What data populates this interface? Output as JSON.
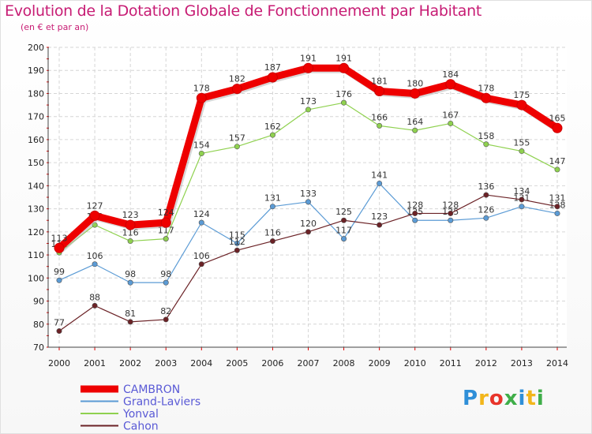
{
  "title": "Evolution de la Dotation Globale de Fonctionnement par Habitant",
  "subtitle": "(en € et par an)",
  "logo": {
    "letters": [
      "P",
      "r",
      "o",
      "x",
      "i",
      "t",
      "i"
    ],
    "colors": [
      "#2f8fd8",
      "#f2b61b",
      "#e8342a",
      "#3fae49",
      "#2f8fd8",
      "#f2b61b",
      "#3fae49"
    ]
  },
  "chart_data": {
    "type": "line",
    "title": "Evolution de la Dotation Globale de Fonctionnement par Habitant",
    "subtitle": "(en € et par an)",
    "x": [
      "2000",
      "2001",
      "2002",
      "2003",
      "2004",
      "2005",
      "2006",
      "2007",
      "2008",
      "2009",
      "2010",
      "2011",
      "2012",
      "2013",
      "2014"
    ],
    "ylim": [
      70,
      200
    ],
    "yticks": [
      "70",
      "80",
      "90",
      "100",
      "110",
      "120",
      "130",
      "140",
      "150",
      "160",
      "170",
      "180",
      "190",
      "200"
    ],
    "grid": true,
    "legend_position": "bottom-left",
    "series": [
      {
        "name": "CAMBRON",
        "color": "#ee0000",
        "values": [
          113,
          127,
          123,
          124,
          178,
          182,
          187,
          191,
          191,
          181,
          180,
          184,
          178,
          175,
          165
        ]
      },
      {
        "name": "Grand-Laviers",
        "color": "#5b9bd5",
        "values": [
          99,
          106,
          98,
          98,
          124,
          115,
          131,
          133,
          117,
          141,
          125,
          125,
          126,
          131,
          128
        ]
      },
      {
        "name": "Yonval",
        "color": "#8fd14f",
        "values": [
          111,
          123,
          116,
          117,
          154,
          157,
          162,
          173,
          176,
          166,
          164,
          167,
          158,
          155,
          147
        ]
      },
      {
        "name": "Cahon",
        "color": "#6b2226",
        "values": [
          77,
          88,
          81,
          82,
          106,
          112,
          116,
          120,
          125,
          123,
          128,
          128,
          136,
          134,
          131
        ]
      }
    ]
  }
}
